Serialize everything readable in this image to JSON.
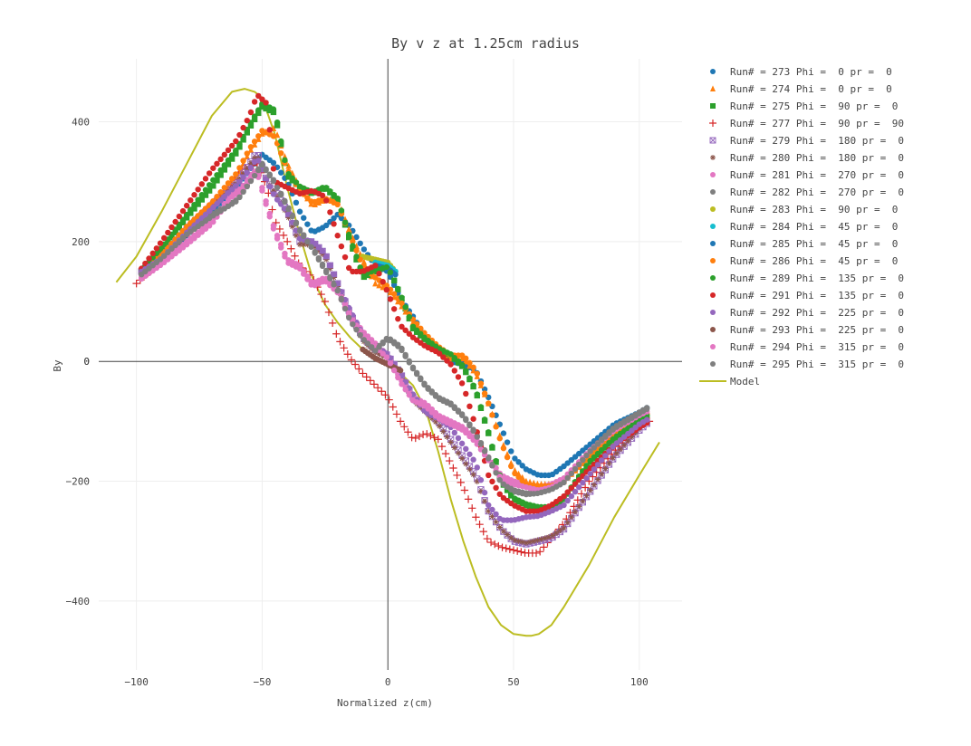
{
  "chart_data": {
    "type": "scatter",
    "title": "By v z at 1.25cm radius",
    "xlabel": "Normalized z(cm)",
    "ylabel": "By",
    "xlim": [
      -115,
      117
    ],
    "ylim": [
      -515,
      505
    ],
    "xticks": [
      -100,
      -50,
      0,
      50,
      100
    ],
    "yticks": [
      -400,
      -200,
      0,
      200,
      400
    ],
    "grid": true,
    "legend_position": "right",
    "series": [
      {
        "name": "Run# = 273 Phi =  0 pr =  0",
        "marker": "circle",
        "color": "#1f77b4",
        "x": [
          -98,
          -90,
          -80,
          -70,
          -60,
          -55,
          -50,
          -45,
          -40,
          -35,
          -30,
          -25,
          -20,
          -15,
          -10,
          -5,
          0,
          5,
          10,
          15,
          20,
          25,
          30,
          35,
          40,
          45,
          50,
          55,
          60,
          65,
          70,
          80,
          90,
          100,
          104
        ],
        "y": [
          145,
          170,
          210,
          250,
          290,
          320,
          345,
          330,
          300,
          250,
          215,
          225,
          245,
          225,
          190,
          160,
          150,
          105,
          75,
          40,
          20,
          0,
          -5,
          -15,
          -60,
          -110,
          -160,
          -180,
          -190,
          -190,
          -175,
          -140,
          -105,
          -85,
          -75
        ]
      },
      {
        "name": "Run# = 274 Phi =  0 pr =  0",
        "marker": "triangle-up",
        "color": "#ff7f0e",
        "x": [
          -98,
          -90,
          -80,
          -70,
          -60,
          -55,
          -50,
          -45,
          -40,
          -35,
          -30,
          -25,
          -20,
          -15,
          -10,
          -5,
          0,
          5,
          10,
          15,
          20,
          25,
          30,
          35,
          40,
          45,
          50,
          55,
          60,
          65,
          70,
          80,
          90,
          100,
          104
        ],
        "y": [
          148,
          175,
          220,
          260,
          310,
          350,
          380,
          390,
          330,
          290,
          260,
          270,
          270,
          215,
          170,
          130,
          120,
          95,
          65,
          40,
          20,
          5,
          5,
          -20,
          -70,
          -130,
          -180,
          -200,
          -205,
          -205,
          -200,
          -160,
          -120,
          -95,
          -85
        ]
      },
      {
        "name": "Run# = 275 Phi =  90 pr =  0",
        "marker": "square",
        "color": "#2ca02c",
        "x": [
          -98,
          -90,
          -80,
          -70,
          -60,
          -55,
          -50,
          -45,
          -40,
          -35,
          -30,
          -25,
          -20,
          -15,
          -10,
          -5,
          0,
          5,
          10,
          15,
          20,
          25,
          30,
          35,
          40,
          45,
          50,
          55,
          60,
          65,
          70,
          80,
          90,
          100,
          104
        ],
        "y": [
          150,
          185,
          240,
          290,
          350,
          390,
          425,
          415,
          310,
          290,
          280,
          290,
          270,
          200,
          140,
          150,
          160,
          110,
          55,
          35,
          20,
          10,
          -10,
          -50,
          -120,
          -200,
          -230,
          -240,
          -245,
          -245,
          -230,
          -170,
          -130,
          -100,
          -90
        ]
      },
      {
        "name": "Run# = 277 Phi =  90 pr =  90",
        "marker": "cross",
        "color": "#d62728",
        "x": [
          -100,
          -92,
          -85,
          -75,
          -65,
          -58,
          -52,
          -48,
          -45,
          -40,
          -35,
          -30,
          -25,
          -20,
          -15,
          -10,
          -5,
          0,
          5,
          10,
          15,
          20,
          25,
          30,
          35,
          40,
          45,
          50,
          55,
          60,
          65,
          70,
          80,
          90,
          100,
          104
        ],
        "y": [
          130,
          160,
          190,
          230,
          280,
          320,
          330,
          290,
          235,
          200,
          160,
          140,
          100,
          40,
          5,
          -20,
          -40,
          -60,
          -100,
          -130,
          -120,
          -130,
          -170,
          -210,
          -260,
          -300,
          -310,
          -315,
          -320,
          -320,
          -295,
          -270,
          -200,
          -150,
          -110,
          -100
        ]
      },
      {
        "name": "Run# = 279 Phi =  180 pr =  0",
        "marker": "square-x-open",
        "color": "#9467bd",
        "x": [
          -98,
          -90,
          -80,
          -70,
          -60,
          -55,
          -52,
          -48,
          -44,
          -40,
          -35,
          -30,
          -25,
          -20,
          -15,
          -10,
          -5,
          0,
          5,
          10,
          15,
          20,
          25,
          30,
          35,
          40,
          45,
          50,
          55,
          60,
          65,
          70,
          80,
          90,
          100,
          104
        ],
        "y": [
          150,
          175,
          220,
          260,
          300,
          330,
          350,
          300,
          280,
          250,
          200,
          200,
          180,
          130,
          80,
          40,
          20,
          10,
          -20,
          -60,
          -80,
          -100,
          -130,
          -160,
          -190,
          -250,
          -280,
          -300,
          -305,
          -300,
          -295,
          -280,
          -220,
          -160,
          -115,
          -100
        ]
      },
      {
        "name": "Run# = 280 Phi =  180 pr =  0",
        "marker": "asterisk",
        "color": "#8c564b",
        "x": [
          -98,
          -90,
          -80,
          -70,
          -60,
          -55,
          -52,
          -48,
          -44,
          -40,
          -35,
          -30,
          -25,
          -20,
          -15,
          -10,
          -5,
          0,
          5,
          10,
          15,
          20,
          25,
          30,
          35,
          40,
          45,
          50,
          55,
          60,
          65,
          70,
          80,
          90,
          100,
          104
        ],
        "y": [
          148,
          172,
          215,
          255,
          298,
          328,
          345,
          300,
          275,
          245,
          195,
          195,
          175,
          125,
          75,
          35,
          15,
          5,
          -25,
          -65,
          -85,
          -105,
          -135,
          -165,
          -195,
          -250,
          -280,
          -298,
          -303,
          -298,
          -292,
          -278,
          -218,
          -158,
          -112,
          -98
        ]
      },
      {
        "name": "Run# = 281 Phi =  270 pr =  0",
        "marker": "circle",
        "color": "#e377c2",
        "x": [
          -98,
          -90,
          -80,
          -70,
          -62,
          -58,
          -55,
          -52,
          -48,
          -45,
          -40,
          -35,
          -30,
          -25,
          -20,
          -15,
          -10,
          -5,
          0,
          5,
          10,
          15,
          20,
          25,
          30,
          35,
          40,
          45,
          50,
          55,
          60,
          65,
          70,
          80,
          90,
          100,
          104
        ],
        "y": [
          140,
          165,
          200,
          235,
          280,
          290,
          310,
          320,
          260,
          220,
          170,
          160,
          130,
          140,
          120,
          80,
          50,
          30,
          10,
          -30,
          -60,
          -70,
          -90,
          -100,
          -110,
          -130,
          -160,
          -190,
          -200,
          -205,
          -210,
          -205,
          -195,
          -150,
          -120,
          -95,
          -85
        ]
      },
      {
        "name": "Run# = 282 Phi =  270 pr =  0",
        "marker": "circle",
        "color": "#7f7f7f",
        "x": [
          -98,
          -90,
          -80,
          -70,
          -60,
          -55,
          -50,
          -45,
          -40,
          -35,
          -30,
          -25,
          -20,
          -15,
          -10,
          -5,
          0,
          5,
          10,
          15,
          20,
          25,
          30,
          35,
          40,
          45,
          50,
          55,
          60,
          65,
          70,
          80,
          90,
          100,
          104
        ],
        "y": [
          148,
          175,
          215,
          245,
          270,
          300,
          330,
          300,
          260,
          220,
          190,
          155,
          120,
          70,
          40,
          20,
          40,
          25,
          -10,
          -40,
          -60,
          -70,
          -90,
          -120,
          -160,
          -200,
          -215,
          -220,
          -218,
          -212,
          -200,
          -150,
          -110,
          -85,
          -75
        ]
      },
      {
        "name": "Run# = 283 Phi =  90 pr =  0",
        "marker": "circle",
        "color": "#bcbd22",
        "x": [
          -10,
          -5,
          0,
          3
        ],
        "y": [
          175,
          170,
          165,
          150
        ]
      },
      {
        "name": "Run# = 284 Phi =  45 pr =  0",
        "marker": "circle",
        "color": "#17becf",
        "x": [
          -5,
          0,
          3
        ],
        "y": [
          165,
          160,
          150
        ]
      },
      {
        "name": "Run# = 285 Phi =  45 pr =  0",
        "marker": "circle",
        "color": "#1f77b4",
        "x": [
          -5,
          0,
          3
        ],
        "y": [
          160,
          155,
          145
        ]
      },
      {
        "name": "Run# = 286 Phi =  45 pr =  0",
        "marker": "circle",
        "color": "#ff7f0e",
        "x": [
          -98,
          -90,
          -80,
          -70,
          -60,
          -55,
          -50,
          -45,
          -40,
          -35,
          -30,
          -25,
          -20,
          -15,
          -10,
          -5,
          0,
          5,
          10,
          15,
          20,
          25,
          30,
          35,
          40,
          45,
          50,
          55,
          60,
          65,
          70,
          80,
          90,
          100,
          104
        ],
        "y": [
          150,
          178,
          225,
          265,
          315,
          355,
          385,
          375,
          320,
          285,
          265,
          272,
          262,
          210,
          160,
          140,
          125,
          100,
          70,
          45,
          25,
          10,
          10,
          -15,
          -70,
          -135,
          -185,
          -205,
          -208,
          -208,
          -200,
          -160,
          -125,
          -95,
          -85
        ]
      },
      {
        "name": "Run# = 289 Phi =  135 pr =  0",
        "marker": "circle",
        "color": "#2ca02c",
        "x": [
          -98,
          -90,
          -80,
          -70,
          -60,
          -55,
          -50,
          -45,
          -40,
          -35,
          -30,
          -25,
          -20,
          -15,
          -10,
          -5,
          0,
          5,
          10,
          15,
          20,
          25,
          30,
          35,
          40,
          45,
          50,
          55,
          60,
          65,
          70,
          80,
          90,
          100,
          104
        ],
        "y": [
          152,
          190,
          245,
          300,
          355,
          395,
          430,
          420,
          315,
          292,
          282,
          292,
          272,
          205,
          145,
          152,
          158,
          112,
          58,
          38,
          22,
          12,
          -8,
          -48,
          -118,
          -198,
          -228,
          -238,
          -243,
          -243,
          -228,
          -168,
          -128,
          -98,
          -88
        ]
      },
      {
        "name": "Run# = 291 Phi =  135 pr =  0",
        "marker": "circle",
        "color": "#d62728",
        "x": [
          -98,
          -90,
          -80,
          -70,
          -60,
          -55,
          -52,
          -48,
          -45,
          -40,
          -35,
          -30,
          -25,
          -20,
          -15,
          -10,
          -5,
          0,
          5,
          10,
          15,
          20,
          25,
          30,
          35,
          40,
          45,
          50,
          55,
          60,
          65,
          70,
          80,
          90,
          100,
          104
        ],
        "y": [
          155,
          200,
          260,
          320,
          370,
          410,
          445,
          430,
          300,
          290,
          280,
          285,
          275,
          210,
          150,
          150,
          160,
          115,
          60,
          40,
          25,
          15,
          -5,
          -40,
          -110,
          -190,
          -225,
          -240,
          -250,
          -250,
          -240,
          -225,
          -180,
          -140,
          -110,
          -100
        ]
      },
      {
        "name": "Run# = 292 Phi =  225 pr =  0",
        "marker": "circle",
        "color": "#9467bd",
        "x": [
          -98,
          -90,
          -80,
          -70,
          -60,
          -55,
          -52,
          -48,
          -45,
          -40,
          -35,
          -30,
          -25,
          -20,
          -15,
          -10,
          -5,
          0,
          5,
          10,
          15,
          20,
          25,
          30,
          35,
          40,
          45,
          50,
          55,
          60,
          65,
          70,
          80,
          90,
          100,
          104
        ],
        "y": [
          150,
          172,
          215,
          255,
          295,
          320,
          340,
          300,
          275,
          250,
          205,
          200,
          180,
          130,
          85,
          45,
          25,
          12,
          -20,
          -55,
          -85,
          -95,
          -110,
          -140,
          -170,
          -240,
          -265,
          -265,
          -260,
          -258,
          -250,
          -240,
          -190,
          -140,
          -105,
          -95
        ]
      },
      {
        "name": "Run# = 293 Phi =  225 pr =  0",
        "marker": "circle",
        "color": "#8c564b",
        "x": [
          -10,
          -5,
          0,
          5
        ],
        "y": [
          20,
          5,
          -5,
          -15
        ]
      },
      {
        "name": "Run# = 294 Phi =  315 pr =  0",
        "marker": "circle",
        "color": "#e377c2",
        "x": [
          -98,
          -90,
          -80,
          -70,
          -62,
          -58,
          -55,
          -52,
          -48,
          -45,
          -40,
          -35,
          -30,
          -25,
          -20,
          -15,
          -10,
          -5,
          0,
          5,
          10,
          15,
          20,
          25,
          30,
          35,
          40,
          45,
          50,
          55,
          60,
          65,
          70,
          80,
          90,
          100,
          104
        ],
        "y": [
          138,
          162,
          195,
          230,
          275,
          285,
          305,
          315,
          255,
          215,
          165,
          155,
          125,
          135,
          115,
          75,
          45,
          25,
          5,
          -35,
          -65,
          -75,
          -95,
          -105,
          -115,
          -135,
          -165,
          -195,
          -205,
          -210,
          -215,
          -210,
          -198,
          -150,
          -115,
          -90,
          -82
        ]
      },
      {
        "name": "Run# = 295 Phi =  315 pr =  0",
        "marker": "circle",
        "color": "#7f7f7f",
        "x": [
          -98,
          -90,
          -80,
          -70,
          -60,
          -55,
          -50,
          -45,
          -40,
          -35,
          -30,
          -25,
          -20,
          -15,
          -10,
          -5,
          0,
          5,
          10,
          15,
          20,
          25,
          30,
          35,
          40,
          45,
          50,
          55,
          60,
          65,
          70,
          80,
          90,
          100,
          104
        ],
        "y": [
          145,
          172,
          212,
          242,
          268,
          298,
          328,
          298,
          258,
          218,
          188,
          152,
          118,
          68,
          38,
          18,
          38,
          22,
          -12,
          -42,
          -62,
          -72,
          -92,
          -122,
          -162,
          -202,
          -217,
          -222,
          -220,
          -214,
          -202,
          -152,
          -112,
          -87,
          -77
        ]
      },
      {
        "name": "Model",
        "marker": "line",
        "color": "#bcbd22",
        "x": [
          -108,
          -100,
          -90,
          -80,
          -70,
          -62,
          -57,
          -53,
          -50,
          -45,
          -40,
          -35,
          -30,
          -25,
          -20,
          -15,
          -10,
          -5,
          0,
          5,
          10,
          15,
          20,
          25,
          30,
          35,
          40,
          45,
          50,
          55,
          57,
          60,
          65,
          70,
          80,
          90,
          100,
          108
        ],
        "y": [
          132,
          175,
          250,
          330,
          410,
          450,
          455,
          450,
          440,
          380,
          290,
          210,
          140,
          95,
          65,
          40,
          20,
          5,
          -5,
          -20,
          -40,
          -80,
          -150,
          -230,
          -300,
          -360,
          -410,
          -440,
          -455,
          -458,
          -458,
          -455,
          -440,
          -410,
          -340,
          -260,
          -190,
          -135
        ]
      }
    ]
  }
}
